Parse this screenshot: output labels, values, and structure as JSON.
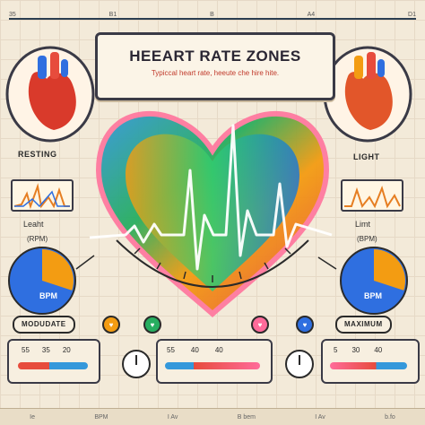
{
  "title": "HEEART RATE ZONES",
  "subtitle": "Typiccal heart rate, heeute che hire hite.",
  "top_ruler": [
    "35",
    "B1",
    "B",
    "A4",
    "D1"
  ],
  "left_panel": {
    "top_label": "RESTING",
    "mid_label": "Leaht",
    "mid_unit": "(RPM)",
    "pie_label": "BPM",
    "pie_caption": "BPM",
    "zone_label": "MODUDATE",
    "pie_fraction": 0.3,
    "pie_colors": [
      "#2f6fe0",
      "#f39c12"
    ]
  },
  "right_panel": {
    "top_label": "LIGHT",
    "mid_label": "Limt",
    "mid_unit": "(BPM)",
    "pie_caption": "BPM",
    "zone_label": "MAXIMUM",
    "pie_fraction": 0.3,
    "pie_colors": [
      "#2f6fe0",
      "#f39c12"
    ]
  },
  "scales": {
    "left_nums": [
      "55",
      "35",
      "20"
    ],
    "center_nums": [
      "55",
      "40",
      "40"
    ],
    "right_nums": [
      "5",
      "30",
      "40"
    ]
  },
  "bottom_strip": [
    "Ie",
    "BPM",
    "I Av",
    "B bem",
    "I Av",
    "b.fo"
  ],
  "colors": {
    "red": "#e74c3c",
    "blue": "#2f6fe0",
    "orange": "#f39c12",
    "green": "#27ae60",
    "pink": "#ff6b9a",
    "dark": "#2a2a2a"
  }
}
